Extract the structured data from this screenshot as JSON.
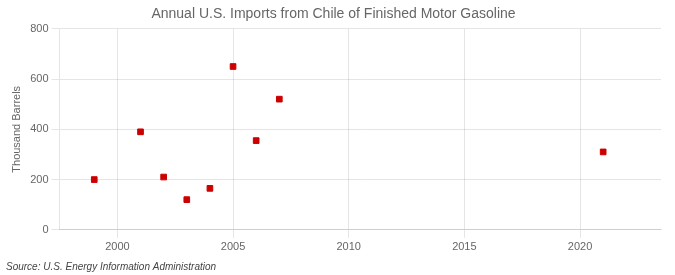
{
  "chart_data": {
    "type": "scatter",
    "title": "Annual U.S. Imports from Chile of Finished Motor Gasoline",
    "ylabel": "Thousand Barrels",
    "annotations": [
      "Source: U.S. Energy Information Administration"
    ],
    "x": [
      1999,
      2001,
      2002,
      2003,
      2004,
      2005,
      2006,
      2007,
      2021
    ],
    "values": [
      200,
      390,
      210,
      120,
      165,
      650,
      355,
      520,
      310
    ],
    "color": "#cc0000",
    "marker": "square",
    "xlim": [
      1997.5,
      2023.5
    ],
    "ylim": [
      0,
      800
    ],
    "xticks": [
      2000,
      2005,
      2010,
      2015,
      2020
    ],
    "yticks": [
      0,
      200,
      400,
      600,
      800
    ],
    "grid": true
  }
}
